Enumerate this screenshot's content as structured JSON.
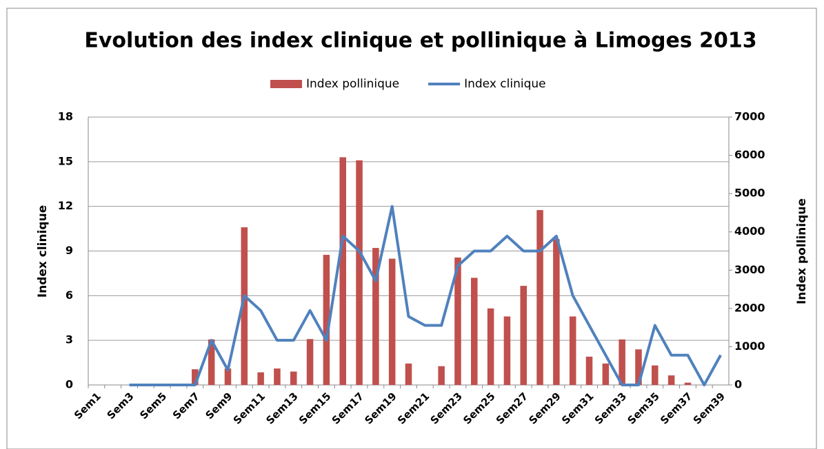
{
  "chart_data": {
    "type": "bar-line",
    "title": "Evolution des index clinique et pollinique à Limoges 2013",
    "ylabel": "Index clinique",
    "y2label": "Index pollinique",
    "legend": "top",
    "grid": true,
    "categories": [
      "Sem1",
      null,
      "Sem3",
      null,
      "Sem5",
      null,
      "Sem7",
      null,
      "Sem9",
      null,
      "Sem11",
      null,
      "Sem13",
      null,
      "Sem15",
      null,
      "Sem17",
      null,
      "Sem19",
      null,
      "Sem21",
      null,
      "Sem23",
      null,
      "Sem25",
      null,
      "Sem27",
      null,
      "Sem29",
      null,
      "Sem31",
      null,
      "Sem33",
      null,
      "Sem35",
      null,
      "Sem37",
      null,
      "Sem39"
    ],
    "ylim": [
      0,
      18
    ],
    "yticks": [
      0,
      3,
      6,
      9,
      12,
      15,
      18
    ],
    "y2lim": [
      0,
      7000
    ],
    "y2ticks": [
      0,
      1000,
      2000,
      3000,
      4000,
      5000,
      6000,
      7000
    ],
    "series": [
      {
        "name": "Index pollinique",
        "type": "bar",
        "axis": "y2",
        "color": "#c0504d",
        "values": [
          null,
          null,
          0,
          0,
          0,
          0,
          410,
          1190,
          430,
          4120,
          330,
          430,
          350,
          1200,
          3400,
          5950,
          5870,
          3580,
          3300,
          560,
          0,
          490,
          3330,
          2800,
          2000,
          1790,
          2590,
          4570,
          3810,
          1790,
          740,
          560,
          1190,
          930,
          510,
          250,
          60,
          0,
          0
        ]
      },
      {
        "name": "Index clinique",
        "type": "line",
        "axis": "y",
        "color": "#4f81bd",
        "values": [
          null,
          null,
          0,
          0,
          0,
          0,
          0,
          3,
          1,
          6,
          5,
          3,
          3,
          5,
          3,
          10,
          9,
          7,
          12,
          4.6,
          4,
          4,
          8,
          9,
          9,
          10,
          9,
          9,
          10,
          6,
          4,
          2,
          0,
          0,
          4,
          2,
          2,
          0,
          2
        ]
      }
    ]
  }
}
